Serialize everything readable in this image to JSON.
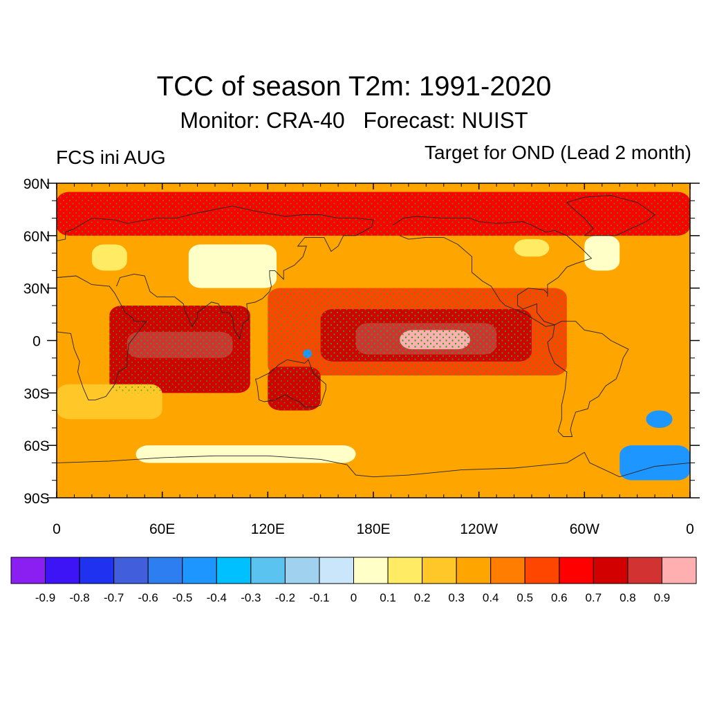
{
  "title": "TCC of season T2m: 1991-2020",
  "subtitle": "Monitor: CRA-40   Forecast: NUIST",
  "left_label": "FCS ini AUG",
  "right_label": "Target for OND (Lead 2 month)",
  "chart_data": {
    "type": "heatmap",
    "projection": "cylindrical-equidistant",
    "lon_range": [
      0,
      360
    ],
    "lat_range": [
      -90,
      90
    ],
    "x_ticks": [
      {
        "lon": 0,
        "label": "0"
      },
      {
        "lon": 60,
        "label": "60E"
      },
      {
        "lon": 120,
        "label": "120E"
      },
      {
        "lon": 180,
        "label": "180E"
      },
      {
        "lon": 240,
        "label": "120W"
      },
      {
        "lon": 300,
        "label": "60W"
      },
      {
        "lon": 360,
        "label": "0"
      }
    ],
    "y_ticks": [
      {
        "lat": 90,
        "label": "90N"
      },
      {
        "lat": 60,
        "label": "60N"
      },
      {
        "lat": 30,
        "label": "30N"
      },
      {
        "lat": 0,
        "label": "0"
      },
      {
        "lat": -30,
        "label": "30S"
      },
      {
        "lat": -60,
        "label": "60S"
      },
      {
        "lat": -90,
        "label": "90S"
      }
    ],
    "levels": [
      "-0.9",
      "-0.8",
      "-0.7",
      "-0.6",
      "-0.5",
      "-0.4",
      "-0.3",
      "-0.2",
      "-0.1",
      "0",
      "0.1",
      "0.2",
      "0.3",
      "0.4",
      "0.5",
      "0.6",
      "0.7",
      "0.8",
      "0.9"
    ],
    "colors": [
      "#8b1ef0",
      "#3c14f5",
      "#1e32f0",
      "#415fdc",
      "#2d7ef0",
      "#1e96ff",
      "#00c0ff",
      "#5ac3f0",
      "#a0d2f0",
      "#cae6fa",
      "#ffffc8",
      "#ffeb64",
      "#ffc828",
      "#ffa500",
      "#ff7d00",
      "#ff4600",
      "#ff0000",
      "#d20000",
      "#d23232",
      "#ffafaf"
    ],
    "stippling_color": "#22aa22",
    "regions": [
      {
        "lon": [
          0,
          360
        ],
        "lat": [
          -90,
          90
        ],
        "value": 0.35
      },
      {
        "lon": [
          120,
          290
        ],
        "lat": [
          -20,
          30
        ],
        "value": 0.55
      },
      {
        "lon": [
          150,
          270
        ],
        "lat": [
          -12,
          18
        ],
        "value": 0.72
      },
      {
        "lon": [
          170,
          250
        ],
        "lat": [
          -8,
          10
        ],
        "value": 0.86
      },
      {
        "lon": [
          195,
          235
        ],
        "lat": [
          -5,
          6
        ],
        "value": 0.92
      },
      {
        "lon": [
          30,
          110
        ],
        "lat": [
          -30,
          20
        ],
        "value": 0.72
      },
      {
        "lon": [
          40,
          100
        ],
        "lat": [
          -10,
          5
        ],
        "value": 0.86
      },
      {
        "lon": [
          0,
          360
        ],
        "lat": [
          60,
          85
        ],
        "value": 0.65
      },
      {
        "lon": [
          120,
          150
        ],
        "lat": [
          -40,
          -15
        ],
        "value": 0.72
      },
      {
        "lon": [
          20,
          40
        ],
        "lat": [
          40,
          55
        ],
        "value": 0.15
      },
      {
        "lon": [
          75,
          125
        ],
        "lat": [
          30,
          55
        ],
        "value": 0.0
      },
      {
        "lon": [
          300,
          320
        ],
        "lat": [
          40,
          60
        ],
        "value": 0.05
      },
      {
        "lon": [
          260,
          280
        ],
        "lat": [
          48,
          58
        ],
        "value": 0.1
      },
      {
        "lon": [
          45,
          170
        ],
        "lat": [
          -70,
          -60
        ],
        "value": 0.02
      },
      {
        "lon": [
          320,
          360
        ],
        "lat": [
          -80,
          -60
        ],
        "value": -0.45
      },
      {
        "lon": [
          335,
          350
        ],
        "lat": [
          -50,
          -40
        ],
        "value": -0.5
      },
      {
        "lon": [
          0,
          360
        ],
        "lat": [
          -90,
          -80
        ],
        "value": 0.3
      },
      {
        "lon": [
          0,
          60
        ],
        "lat": [
          -45,
          -25
        ],
        "value": 0.2
      },
      {
        "lon": [
          140,
          145
        ],
        "lat": [
          -10,
          -5
        ],
        "value": -0.5
      }
    ]
  }
}
